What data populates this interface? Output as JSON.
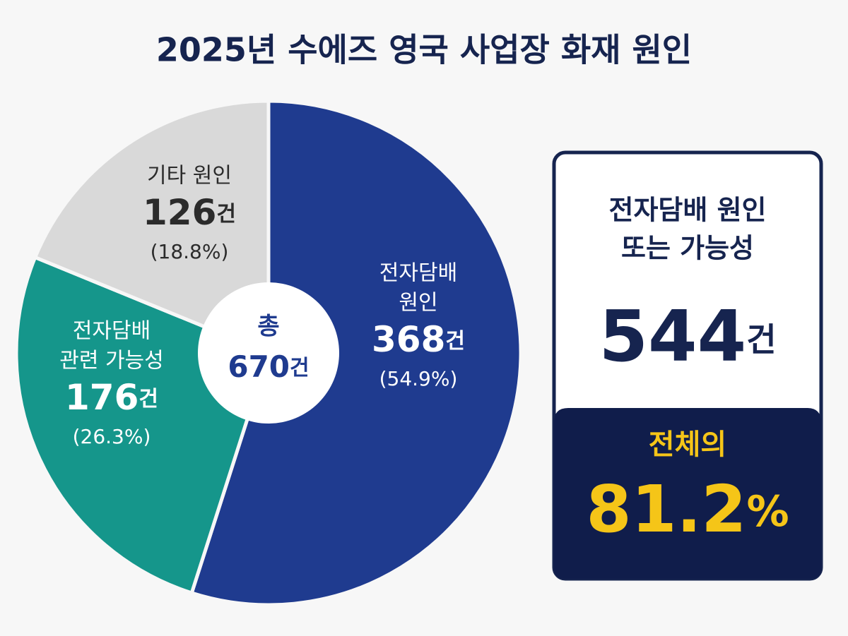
{
  "chart_data": {
    "type": "pie",
    "title": "2025년 수에즈 영국 사업장 화재 원인",
    "labels": [
      [
        "전자담배",
        "원인"
      ],
      [
        "전자담배",
        "관련 가능성"
      ],
      [
        "기타 원인"
      ]
    ],
    "values": [
      368,
      176,
      126
    ],
    "shares": [
      {
        "value": 54.9,
        "label": "(54.9%)"
      },
      {
        "value": 26.3,
        "label": "(26.3%)"
      },
      {
        "value": 18.8,
        "label": "(18.8%)"
      }
    ],
    "unit": "건",
    "colors": [
      "#1f3b8f",
      "#15968b",
      "#d9d9d9"
    ],
    "label_colors": [
      "#ffffff",
      "#ffffff",
      "#2b2b2b"
    ],
    "center_label": "총",
    "total": 670,
    "callout": {
      "title_lines": [
        "전자담배 원인",
        "또는 가능성"
      ],
      "value": 544,
      "unit": "건",
      "share_label": "전체의",
      "share": 81.2,
      "share_unit": "%"
    }
  }
}
